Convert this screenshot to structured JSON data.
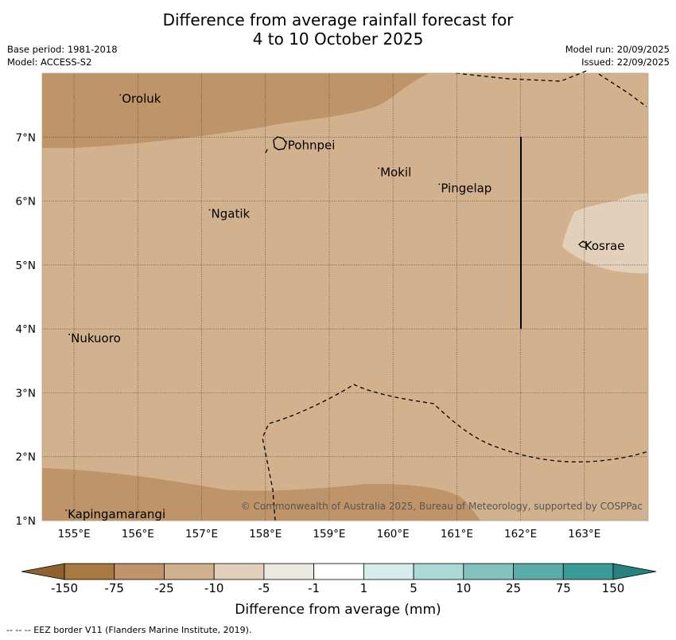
{
  "title": {
    "line1": "Difference from average rainfall forecast for",
    "line2": "4 to 10 October 2025"
  },
  "meta": {
    "base_period": "Base period: 1981-2018",
    "model": "Model: ACCESS-S2",
    "model_run": "Model run: 20/09/2025",
    "issued": "Issued: 22/09/2025"
  },
  "axes": {
    "lon_labels": [
      "155°E",
      "156°E",
      "157°E",
      "158°E",
      "159°E",
      "160°E",
      "161°E",
      "162°E",
      "163°E"
    ],
    "lat_labels": [
      "7°N",
      "6°N",
      "5°N",
      "4°N",
      "3°N",
      "2°N",
      "1°N"
    ],
    "lon_range": [
      154.5,
      164.0
    ],
    "lat_range": [
      1.0,
      8.0
    ]
  },
  "places": [
    {
      "name": "Oroluk",
      "lon": 155.75,
      "lat": 7.6
    },
    {
      "name": "Pohnpei",
      "lon": 158.35,
      "lat": 6.87
    },
    {
      "name": "Mokil",
      "lon": 159.8,
      "lat": 6.45
    },
    {
      "name": "Pingelap",
      "lon": 160.75,
      "lat": 6.2
    },
    {
      "name": "Ngatik",
      "lon": 157.15,
      "lat": 5.8
    },
    {
      "name": "Kosrae",
      "lon": 163.0,
      "lat": 5.3
    },
    {
      "name": "Nukuoro",
      "lon": 154.95,
      "lat": 3.85
    },
    {
      "name": "Kapingamarangi",
      "lon": 154.9,
      "lat": 1.1
    }
  ],
  "copyright": "© Commonwealth of Australia 2025, Bureau of Meteorology, supported by COSPPac",
  "colorbar": {
    "ticks": [
      "-150",
      "-75",
      "-25",
      "-10",
      "-5",
      "-1",
      "1",
      "5",
      "10",
      "25",
      "75",
      "150"
    ],
    "colors": [
      "#a87940",
      "#be9468",
      "#d2b18e",
      "#e3d0bb",
      "#ece8e2",
      "#ffffff",
      "#d6ecea",
      "#acd8d6",
      "#83c3bf",
      "#5aaeaa",
      "#399b98"
    ],
    "under_color": "#8f6230",
    "over_color": "#25827f",
    "label": "Difference from average (mm)"
  },
  "fill_colors": {
    "dry": "#be9468",
    "mid": "#d2b18e",
    "light": "#e3d0bb"
  },
  "footnote": "--  --  -- EEZ border V11 (Flanders Marine Institute, 2019)."
}
